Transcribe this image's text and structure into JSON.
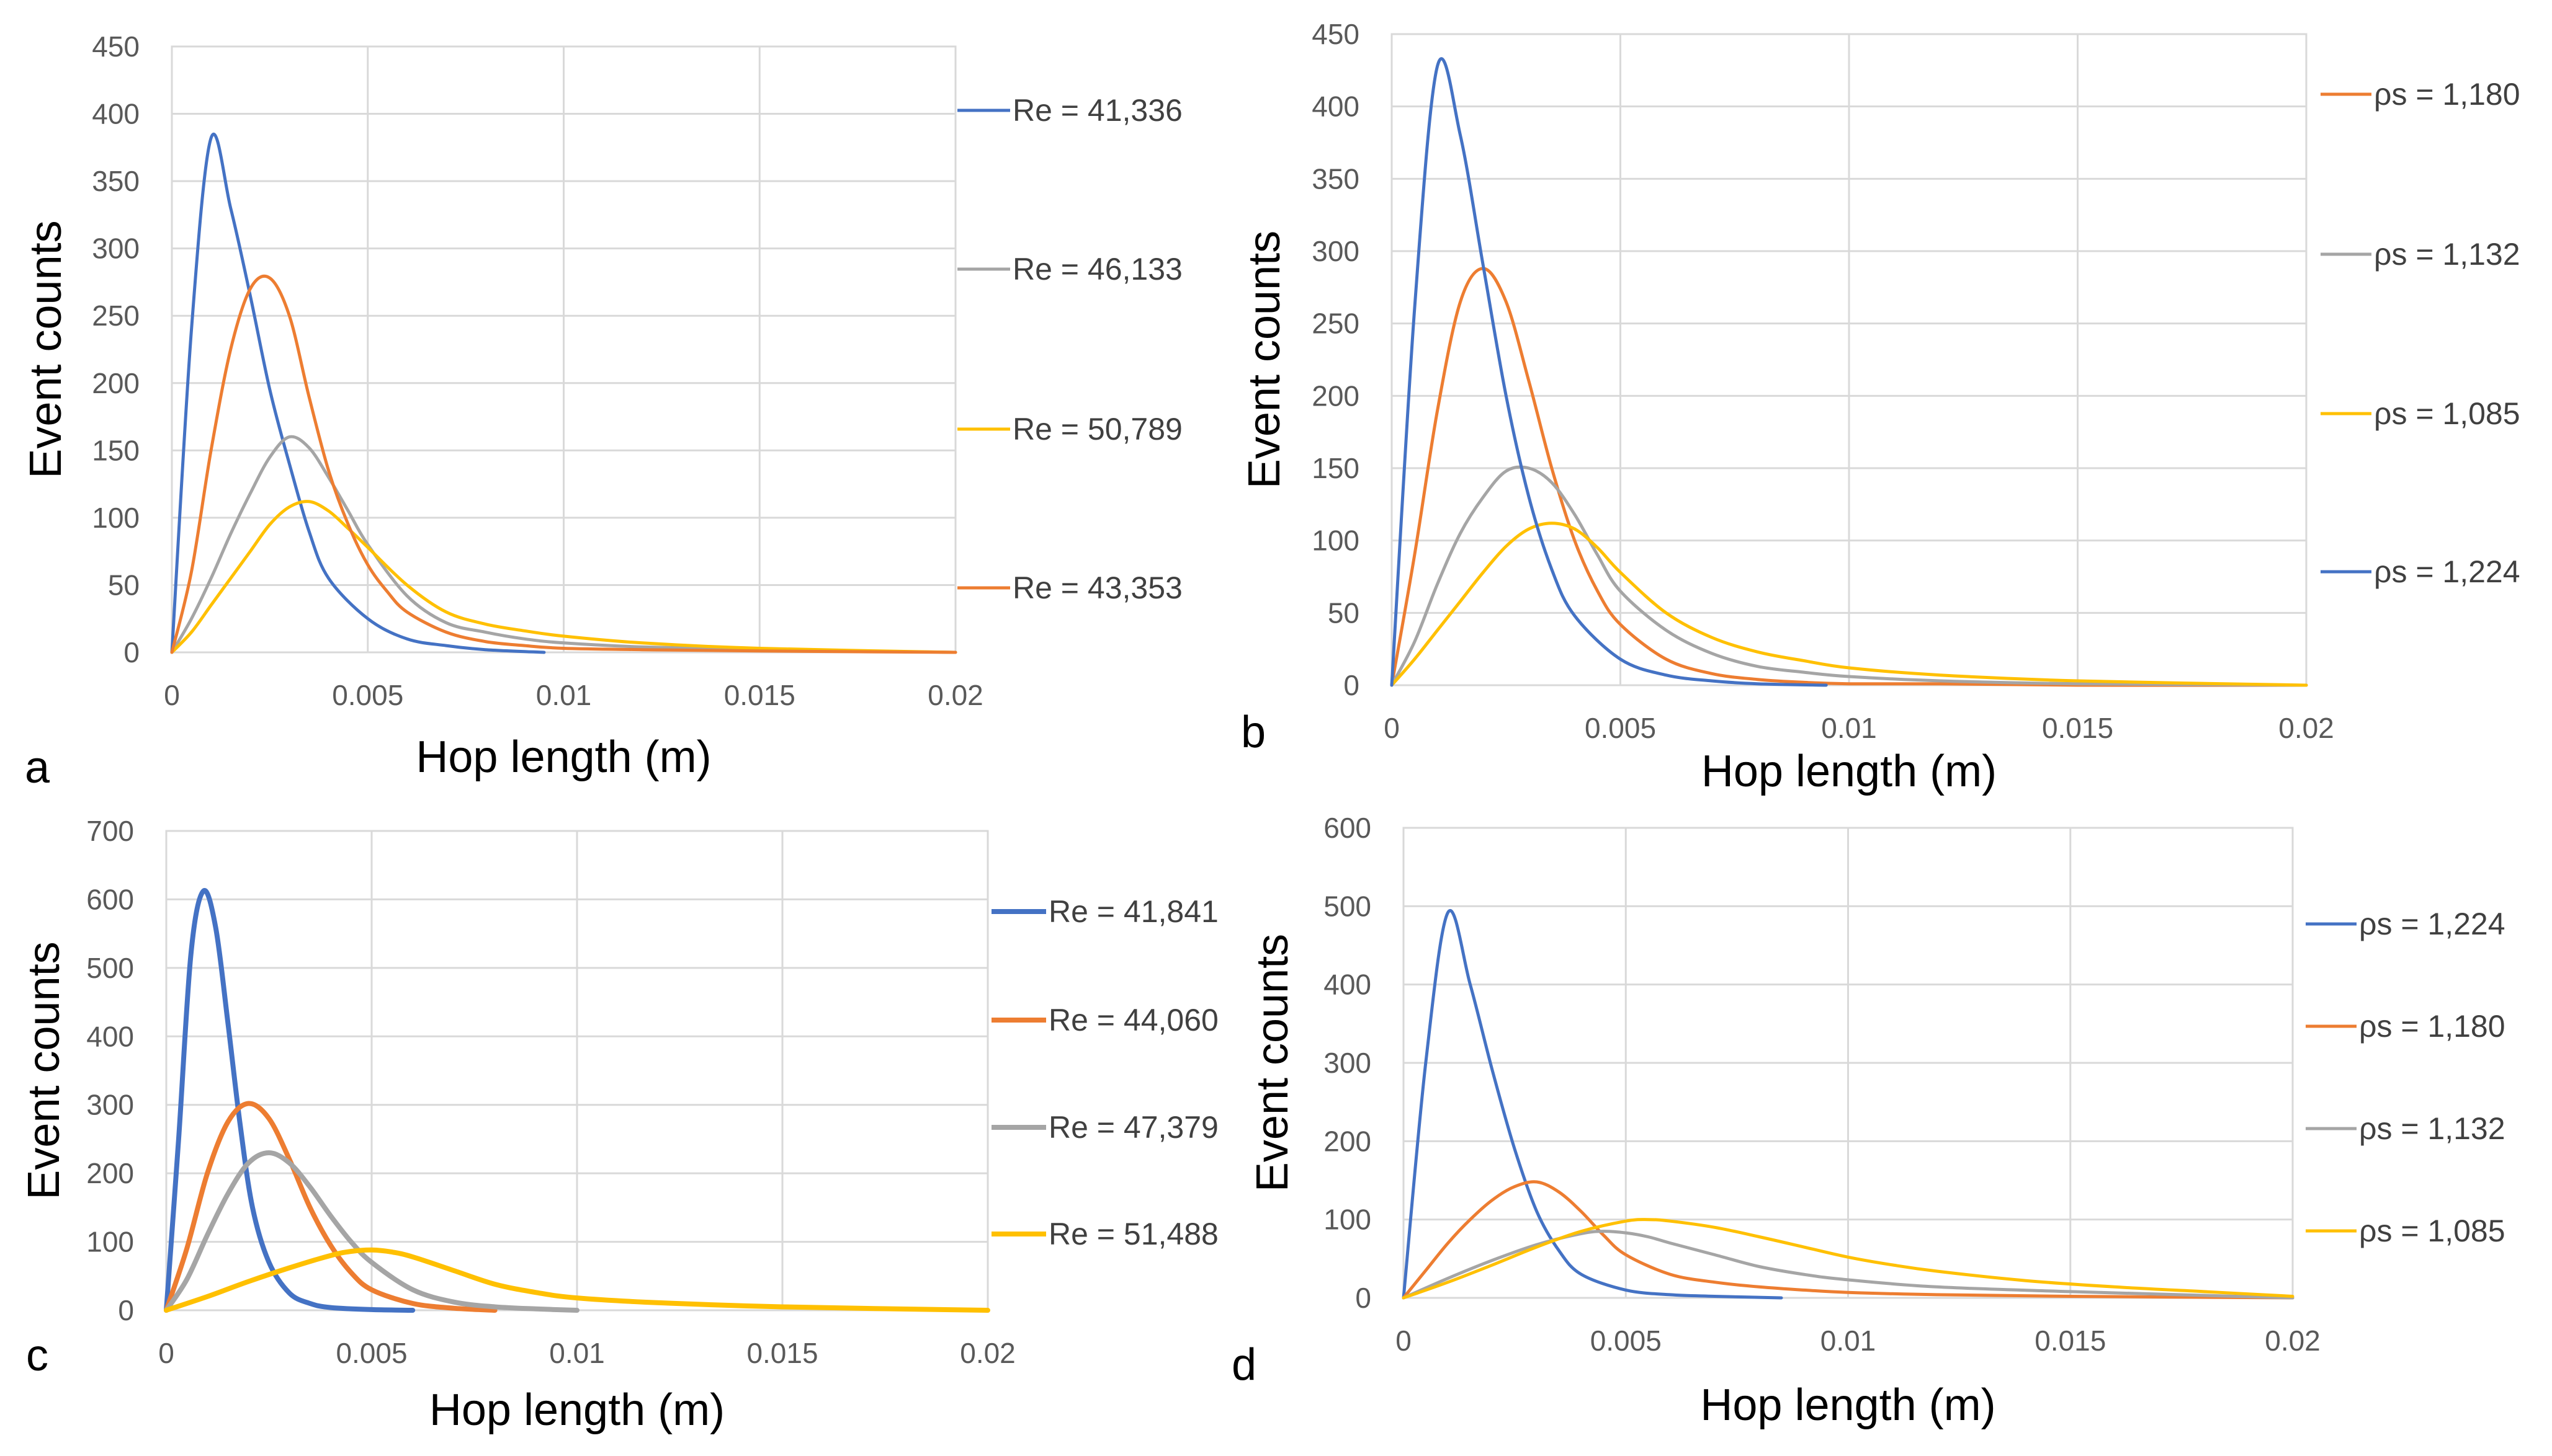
{
  "chart_data": [
    {
      "type": "line",
      "panel_label": "a",
      "xlabel": "Hop length (m)",
      "ylabel": "Event counts",
      "xlim": [
        0,
        0.02
      ],
      "ylim": [
        0,
        450
      ],
      "x_ticks": [
        0,
        0.005,
        0.01,
        0.015,
        0.02
      ],
      "x_tick_labels": [
        "0",
        "0.005",
        "0.01",
        "0.015",
        "0.02"
      ],
      "y_ticks": [
        0,
        50,
        100,
        150,
        200,
        250,
        300,
        350,
        400,
        450
      ],
      "y_tick_labels": [
        "0",
        "50",
        "100",
        "150",
        "200",
        "250",
        "300",
        "350",
        "400",
        "450"
      ],
      "grid": true,
      "legend_position": "right",
      "legend": [
        "Re = 41,336",
        "Re = 46,133",
        "Re = 50,789",
        "Re = 43,353"
      ],
      "series": [
        {
          "name": "Re = 41,336",
          "color": "#4472C4",
          "x": [
            0,
            0.0005,
            0.001,
            0.0015,
            0.002,
            0.0025,
            0.003,
            0.0035,
            0.004,
            0.005,
            0.006,
            0.007,
            0.008,
            0.0095
          ],
          "y": [
            0,
            240,
            382,
            330,
            265,
            195,
            140,
            90,
            55,
            25,
            10,
            5,
            2,
            0
          ]
        },
        {
          "name": "Re = 46,133",
          "color": "#A5A5A5",
          "x": [
            0,
            0.0005,
            0.001,
            0.0015,
            0.002,
            0.0025,
            0.003,
            0.0035,
            0.004,
            0.0045,
            0.005,
            0.006,
            0.007,
            0.008,
            0.009,
            0.01,
            0.012,
            0.015,
            0.02
          ],
          "y": [
            0,
            25,
            55,
            88,
            118,
            145,
            160,
            152,
            130,
            105,
            80,
            42,
            22,
            15,
            10,
            7,
            4,
            2,
            0
          ]
        },
        {
          "name": "Re = 50,789",
          "color": "#FFC000",
          "x": [
            0,
            0.0005,
            0.001,
            0.0015,
            0.002,
            0.0025,
            0.003,
            0.0035,
            0.004,
            0.0045,
            0.005,
            0.006,
            0.007,
            0.008,
            0.009,
            0.01,
            0.012,
            0.015,
            0.02
          ],
          "y": [
            0,
            15,
            35,
            55,
            75,
            95,
            108,
            112,
            105,
            92,
            78,
            50,
            30,
            21,
            16,
            12,
            7,
            3,
            0
          ]
        },
        {
          "name": "Re = 43,353",
          "color": "#ED7D31",
          "x": [
            0,
            0.0005,
            0.001,
            0.0015,
            0.002,
            0.0025,
            0.003,
            0.0035,
            0.004,
            0.0045,
            0.005,
            0.0055,
            0.006,
            0.007,
            0.008,
            0.009,
            0.01,
            0.012,
            0.015,
            0.02
          ],
          "y": [
            0,
            60,
            150,
            225,
            270,
            278,
            250,
            190,
            135,
            95,
            65,
            45,
            30,
            15,
            8,
            5,
            3,
            2,
            1,
            0
          ]
        }
      ]
    },
    {
      "type": "line",
      "panel_label": "b",
      "xlabel": "Hop length (m)",
      "ylabel": "Event counts",
      "xlim": [
        0,
        0.02
      ],
      "ylim": [
        0,
        450
      ],
      "x_ticks": [
        0,
        0.005,
        0.01,
        0.015,
        0.02
      ],
      "x_tick_labels": [
        "0",
        "0.005",
        "0.01",
        "0.015",
        "0.02"
      ],
      "y_ticks": [
        0,
        50,
        100,
        150,
        200,
        250,
        300,
        350,
        400,
        450
      ],
      "y_tick_labels": [
        "0",
        "50",
        "100",
        "150",
        "200",
        "250",
        "300",
        "350",
        "400",
        "450"
      ],
      "grid": true,
      "legend_position": "right",
      "legend": [
        "ρs = 1,180",
        "ρs = 1,132",
        "ρs = 1,085",
        "ρs = 1,224"
      ],
      "series": [
        {
          "name": "ρs = 1,180",
          "color": "#ED7D31",
          "x": [
            0,
            0.0005,
            0.001,
            0.0015,
            0.002,
            0.0025,
            0.003,
            0.0035,
            0.004,
            0.0045,
            0.005,
            0.006,
            0.007,
            0.008,
            0.009,
            0.01,
            0.012,
            0.015,
            0.02
          ],
          "y": [
            0,
            90,
            190,
            265,
            288,
            265,
            210,
            150,
            100,
            65,
            42,
            18,
            8,
            4,
            2,
            1,
            1,
            0,
            0
          ]
        },
        {
          "name": "ρs = 1,132",
          "color": "#A5A5A5",
          "x": [
            0,
            0.0005,
            0.001,
            0.0015,
            0.002,
            0.0025,
            0.003,
            0.0035,
            0.004,
            0.0045,
            0.005,
            0.006,
            0.007,
            0.008,
            0.009,
            0.01,
            0.012,
            0.015,
            0.02
          ],
          "y": [
            0,
            30,
            70,
            105,
            130,
            148,
            150,
            140,
            118,
            90,
            65,
            38,
            22,
            13,
            9,
            6,
            3,
            1,
            0
          ]
        },
        {
          "name": "ρs = 1,085",
          "color": "#FFC000",
          "x": [
            0,
            0.0005,
            0.001,
            0.0015,
            0.002,
            0.0025,
            0.003,
            0.0035,
            0.004,
            0.0045,
            0.005,
            0.006,
            0.007,
            0.008,
            0.009,
            0.01,
            0.012,
            0.015,
            0.02
          ],
          "y": [
            0,
            18,
            38,
            58,
            78,
            96,
            108,
            112,
            108,
            95,
            78,
            50,
            33,
            23,
            17,
            12,
            7,
            3,
            0
          ]
        },
        {
          "name": "ρs = 1,224",
          "color": "#4472C4",
          "x": [
            0,
            0.0005,
            0.001,
            0.0015,
            0.002,
            0.0025,
            0.003,
            0.0035,
            0.004,
            0.005,
            0.006,
            0.007,
            0.008,
            0.0095
          ],
          "y": [
            0,
            260,
            428,
            380,
            290,
            200,
            130,
            80,
            48,
            18,
            7,
            3,
            1,
            0
          ]
        }
      ]
    },
    {
      "type": "line",
      "panel_label": "c",
      "xlabel": "Hop length (m)",
      "ylabel": "Event counts",
      "xlim": [
        0,
        0.02
      ],
      "ylim": [
        0,
        700
      ],
      "x_ticks": [
        0,
        0.005,
        0.01,
        0.015,
        0.02
      ],
      "x_tick_labels": [
        "0",
        "0.005",
        "0.01",
        "0.015",
        "0.02"
      ],
      "y_ticks": [
        0,
        100,
        200,
        300,
        400,
        500,
        600,
        700
      ],
      "y_tick_labels": [
        "0",
        "100",
        "200",
        "300",
        "400",
        "500",
        "600",
        "700"
      ],
      "grid": true,
      "legend_position": "right",
      "legend": [
        "Re = 41,841",
        "Re = 44,060",
        "Re = 47,379",
        "Re = 51,488"
      ],
      "series": [
        {
          "name": "Re = 41,841",
          "color": "#4472C4",
          "x": [
            0,
            0.0003,
            0.0006,
            0.0009,
            0.0012,
            0.0015,
            0.0018,
            0.0021,
            0.0025,
            0.003,
            0.0035,
            0.004,
            0.005,
            0.006
          ],
          "y": [
            0,
            250,
            520,
            612,
            560,
            420,
            270,
            150,
            70,
            25,
            10,
            4,
            1,
            0
          ]
        },
        {
          "name": "Re = 44,060",
          "color": "#ED7D31",
          "x": [
            0,
            0.0005,
            0.001,
            0.0015,
            0.002,
            0.0025,
            0.003,
            0.0035,
            0.004,
            0.0045,
            0.005,
            0.006,
            0.007,
            0.008
          ],
          "y": [
            0,
            90,
            200,
            275,
            302,
            280,
            220,
            150,
            95,
            55,
            30,
            10,
            3,
            0
          ]
        },
        {
          "name": "Re = 47,379",
          "color": "#A5A5A5",
          "x": [
            0,
            0.0005,
            0.001,
            0.0015,
            0.002,
            0.0025,
            0.003,
            0.0035,
            0.004,
            0.0045,
            0.005,
            0.006,
            0.007,
            0.008,
            0.009,
            0.01
          ],
          "y": [
            0,
            45,
            110,
            170,
            215,
            230,
            215,
            180,
            138,
            100,
            70,
            30,
            12,
            5,
            2,
            0
          ]
        },
        {
          "name": "Re = 51,488",
          "color": "#FFC000",
          "x": [
            0,
            0.001,
            0.002,
            0.003,
            0.004,
            0.0045,
            0.005,
            0.0055,
            0.006,
            0.007,
            0.008,
            0.009,
            0.01,
            0.012,
            0.015,
            0.02
          ],
          "y": [
            0,
            20,
            42,
            62,
            80,
            86,
            88,
            85,
            78,
            58,
            38,
            26,
            18,
            11,
            5,
            0
          ]
        }
      ]
    },
    {
      "type": "line",
      "panel_label": "d",
      "xlabel": "Hop length (m)",
      "ylabel": "Event counts",
      "xlim": [
        0,
        0.02
      ],
      "ylim": [
        0,
        600
      ],
      "x_ticks": [
        0,
        0.005,
        0.01,
        0.015,
        0.02
      ],
      "x_tick_labels": [
        "0",
        "0.005",
        "0.01",
        "0.015",
        "0.02"
      ],
      "y_ticks": [
        0,
        100,
        200,
        300,
        400,
        500,
        600
      ],
      "y_tick_labels": [
        "0",
        "100",
        "200",
        "300",
        "400",
        "500",
        "600"
      ],
      "grid": true,
      "legend_position": "right",
      "legend": [
        "ρs = 1,224",
        "ρs = 1,180",
        "ρs = 1,132",
        "ρs = 1,085"
      ],
      "series": [
        {
          "name": "ρs = 1,224",
          "color": "#4472C4",
          "x": [
            0,
            0.0005,
            0.001,
            0.0015,
            0.002,
            0.0025,
            0.003,
            0.0035,
            0.004,
            0.005,
            0.006,
            0.007,
            0.0085
          ],
          "y": [
            0,
            300,
            492,
            400,
            290,
            190,
            110,
            60,
            30,
            10,
            4,
            2,
            0
          ]
        },
        {
          "name": "ρs = 1,180",
          "color": "#ED7D31",
          "x": [
            0,
            0.0005,
            0.001,
            0.0015,
            0.002,
            0.0025,
            0.003,
            0.0035,
            0.004,
            0.0045,
            0.005,
            0.006,
            0.007,
            0.008,
            0.009,
            0.01,
            0.012,
            0.015,
            0.02
          ],
          "y": [
            0,
            35,
            70,
            100,
            125,
            142,
            148,
            135,
            110,
            80,
            55,
            30,
            20,
            14,
            10,
            7,
            4,
            2,
            0
          ]
        },
        {
          "name": "ρs = 1,132",
          "color": "#A5A5A5",
          "x": [
            0,
            0.001,
            0.002,
            0.003,
            0.004,
            0.0045,
            0.005,
            0.0055,
            0.006,
            0.007,
            0.008,
            0.009,
            0.01,
            0.012,
            0.015,
            0.02
          ],
          "y": [
            0,
            25,
            48,
            68,
            82,
            85,
            83,
            78,
            70,
            55,
            40,
            30,
            23,
            14,
            8,
            0
          ]
        },
        {
          "name": "ρs = 1,085",
          "color": "#FFC000",
          "x": [
            0,
            0.001,
            0.002,
            0.003,
            0.004,
            0.005,
            0.0055,
            0.006,
            0.007,
            0.008,
            0.009,
            0.01,
            0.011,
            0.012,
            0.014,
            0.016,
            0.018,
            0.02
          ],
          "y": [
            0,
            20,
            42,
            65,
            85,
            98,
            100,
            98,
            90,
            78,
            65,
            52,
            42,
            34,
            22,
            14,
            8,
            2
          ]
        }
      ]
    }
  ]
}
